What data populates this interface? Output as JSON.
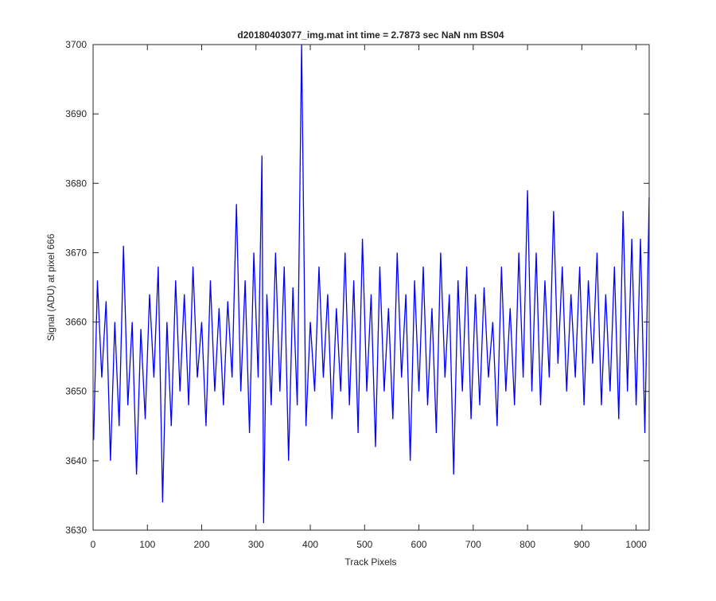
{
  "chart_data": {
    "type": "line",
    "title": "d20180403077_img.mat int time = 2.7873 sec  NaN nm BS04",
    "x_label": "Track Pixels",
    "y_label": "Signal (ADU) at pixel 666",
    "x": [
      1,
      8,
      16,
      24,
      32,
      40,
      48,
      56,
      64,
      72,
      80,
      88,
      96,
      104,
      112,
      120,
      128,
      136,
      144,
      152,
      160,
      168,
      176,
      184,
      192,
      200,
      208,
      216,
      224,
      232,
      240,
      248,
      256,
      264,
      272,
      280,
      288,
      296,
      304,
      311,
      314,
      320,
      328,
      336,
      344,
      352,
      360,
      368,
      376,
      384,
      392,
      400,
      408,
      416,
      424,
      432,
      440,
      448,
      456,
      464,
      472,
      480,
      488,
      496,
      504,
      512,
      520,
      528,
      536,
      544,
      552,
      560,
      568,
      576,
      584,
      592,
      600,
      608,
      616,
      624,
      632,
      640,
      648,
      656,
      664,
      672,
      680,
      688,
      696,
      704,
      712,
      720,
      728,
      736,
      744,
      752,
      760,
      768,
      776,
      784,
      792,
      800,
      808,
      816,
      824,
      832,
      840,
      848,
      856,
      864,
      872,
      880,
      888,
      896,
      904,
      912,
      920,
      928,
      936,
      944,
      952,
      960,
      968,
      976,
      984,
      992,
      1000,
      1008,
      1016,
      1024
    ],
    "series": [
      {
        "name": "signal",
        "color": "#0000ff",
        "values": [
          3643,
          3666,
          3652,
          3663,
          3640,
          3660,
          3645,
          3671,
          3648,
          3660,
          3638,
          3659,
          3646,
          3664,
          3652,
          3668,
          3634,
          3660,
          3645,
          3666,
          3650,
          3664,
          3648,
          3668,
          3652,
          3660,
          3645,
          3666,
          3650,
          3662,
          3648,
          3663,
          3652,
          3677,
          3650,
          3666,
          3644,
          3670,
          3652,
          3684,
          3631,
          3664,
          3648,
          3670,
          3650,
          3668,
          3640,
          3665,
          3648,
          3700,
          3645,
          3660,
          3650,
          3668,
          3652,
          3664,
          3646,
          3662,
          3650,
          3670,
          3648,
          3666,
          3644,
          3672,
          3650,
          3664,
          3642,
          3668,
          3650,
          3662,
          3646,
          3670,
          3652,
          3664,
          3640,
          3666,
          3650,
          3668,
          3648,
          3662,
          3644,
          3670,
          3652,
          3664,
          3638,
          3666,
          3650,
          3668,
          3646,
          3664,
          3648,
          3665,
          3652,
          3660,
          3645,
          3668,
          3650,
          3662,
          3648,
          3670,
          3652,
          3679,
          3650,
          3670,
          3648,
          3666,
          3652,
          3676,
          3654,
          3668,
          3650,
          3664,
          3652,
          3668,
          3648,
          3666,
          3654,
          3670,
          3648,
          3664,
          3650,
          3668,
          3646,
          3676,
          3650,
          3672,
          3648,
          3672,
          3644,
          3678
        ]
      }
    ],
    "xlim": [
      0,
      1024
    ],
    "ylim": [
      3630,
      3700
    ],
    "xticks": [
      0,
      100,
      200,
      300,
      400,
      500,
      600,
      700,
      800,
      900,
      1000
    ],
    "yticks": [
      3630,
      3640,
      3650,
      3660,
      3670,
      3680,
      3690,
      3700
    ]
  }
}
